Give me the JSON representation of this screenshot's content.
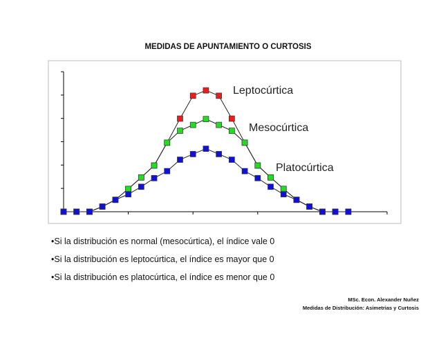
{
  "title": "MEDIDAS DE APUNTAMIENTO O CURTOSIS",
  "bullets": [
    "•Si la distribución es normal (mesocúrtica), el índice vale 0",
    "•Si la distribución es leptocúrtica, el índice es mayor  que 0",
    "•Si la distribución es platocúrtica, el índice es menor que 0"
  ],
  "footer": {
    "author": "MSc. Econ. Alexander Nuñez",
    "subtitle": "Medidas de Distribución: Asimetrias y Curtosis"
  },
  "chart_data": {
    "type": "line",
    "title": "",
    "xlabel": "",
    "ylabel": "",
    "x": [
      0,
      1,
      2,
      3,
      4,
      5,
      6,
      7,
      8,
      9,
      10,
      11,
      12,
      13,
      14,
      15,
      16,
      17,
      18,
      19,
      20,
      21,
      22
    ],
    "xlim": [
      0,
      25
    ],
    "ylim": [
      0,
      6
    ],
    "xticks": [
      5,
      10,
      15,
      25
    ],
    "yticks": [
      1,
      2,
      3,
      4,
      5,
      6
    ],
    "grid": false,
    "legend": "none",
    "series": [
      {
        "name": "Leptocúrtica",
        "color": "#ee1c1c",
        "values": [
          0,
          0,
          0,
          0.22,
          0.51,
          0.98,
          1.47,
          1.98,
          2.96,
          3.99,
          4.97,
          5.2,
          4.97,
          3.99,
          2.96,
          1.98,
          1.47,
          0.98,
          0.51,
          0.22,
          0,
          0,
          0
        ]
      },
      {
        "name": "Mesocúrtica",
        "color": "#22dd22",
        "values": [
          0,
          0,
          0,
          0.22,
          0.51,
          0.98,
          1.47,
          1.98,
          2.96,
          3.47,
          3.72,
          3.97,
          3.72,
          3.47,
          2.96,
          1.98,
          1.47,
          0.98,
          0.51,
          0.22,
          0,
          0,
          0
        ]
      },
      {
        "name": "Platocúrtica",
        "color": "#1010dd",
        "values": [
          0,
          0,
          0,
          0.22,
          0.51,
          0.75,
          1.07,
          1.44,
          1.74,
          2.23,
          2.47,
          2.7,
          2.47,
          2.23,
          1.74,
          1.44,
          1.07,
          0.75,
          0.51,
          0.22,
          0,
          0,
          0
        ]
      }
    ],
    "annotations": [
      "Leptocúrtica",
      "Mesocúrtica",
      "Platocúrtica"
    ]
  }
}
